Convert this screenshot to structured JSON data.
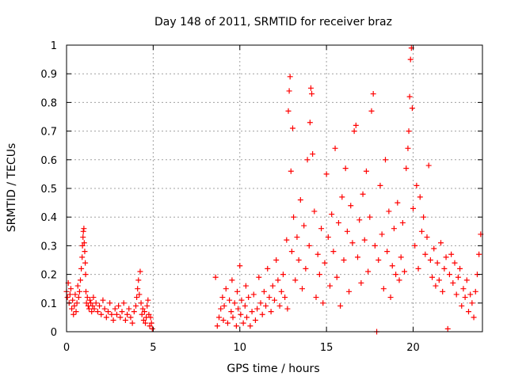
{
  "chart_data": {
    "type": "scatter",
    "title": "Day 148 of 2011, SRMTID for receiver braz",
    "xlabel": "GPS time / hours",
    "ylabel": "SRMTID / TECUs",
    "xlim": [
      0,
      24
    ],
    "ylim": [
      0,
      1
    ],
    "x_ticks": [
      0,
      5,
      10,
      15,
      20
    ],
    "x_tick_labels": [
      "0",
      "5",
      "10",
      "15",
      "20"
    ],
    "y_ticks": [
      0,
      0.1,
      0.2,
      0.3,
      0.4,
      0.5,
      0.6,
      0.7,
      0.8,
      0.9,
      1
    ],
    "y_tick_labels": [
      "0",
      "0.1",
      "0.2",
      "0.3",
      "0.4",
      "0.5",
      "0.6",
      "0.7",
      "0.8",
      "0.9",
      "1"
    ],
    "grid": true,
    "marker": "+",
    "series": [
      {
        "name": "SRMTID",
        "color": "#ff0000",
        "points": [
          [
            0.0,
            0.14
          ],
          [
            0.05,
            0.12
          ],
          [
            0.1,
            0.17
          ],
          [
            0.15,
            0.1
          ],
          [
            0.2,
            0.13
          ],
          [
            0.25,
            0.15
          ],
          [
            0.3,
            0.08
          ],
          [
            0.35,
            0.11
          ],
          [
            0.4,
            0.06
          ],
          [
            0.45,
            0.09
          ],
          [
            0.5,
            0.13
          ],
          [
            0.55,
            0.07
          ],
          [
            0.6,
            0.1
          ],
          [
            0.65,
            0.16
          ],
          [
            0.7,
            0.12
          ],
          [
            0.75,
            0.14
          ],
          [
            0.8,
            0.18
          ],
          [
            0.85,
            0.22
          ],
          [
            0.9,
            0.26
          ],
          [
            0.92,
            0.3
          ],
          [
            0.95,
            0.33
          ],
          [
            0.97,
            0.35
          ],
          [
            1.0,
            0.36
          ],
          [
            1.02,
            0.31
          ],
          [
            1.05,
            0.28
          ],
          [
            1.08,
            0.24
          ],
          [
            1.1,
            0.2
          ],
          [
            1.12,
            0.14
          ],
          [
            1.15,
            0.1
          ],
          [
            1.2,
            0.12
          ],
          [
            1.25,
            0.09
          ],
          [
            1.3,
            0.08
          ],
          [
            1.35,
            0.11
          ],
          [
            1.4,
            0.1
          ],
          [
            1.45,
            0.07
          ],
          [
            1.5,
            0.09
          ],
          [
            1.55,
            0.12
          ],
          [
            1.6,
            0.08
          ],
          [
            1.7,
            0.1
          ],
          [
            1.8,
            0.07
          ],
          [
            1.9,
            0.09
          ],
          [
            2.0,
            0.06
          ],
          [
            2.1,
            0.11
          ],
          [
            2.2,
            0.08
          ],
          [
            2.3,
            0.05
          ],
          [
            2.4,
            0.07
          ],
          [
            2.5,
            0.1
          ],
          [
            2.6,
            0.06
          ],
          [
            2.7,
            0.04
          ],
          [
            2.8,
            0.08
          ],
          [
            2.9,
            0.06
          ],
          [
            3.0,
            0.09
          ],
          [
            3.1,
            0.05
          ],
          [
            3.2,
            0.07
          ],
          [
            3.3,
            0.1
          ],
          [
            3.4,
            0.04
          ],
          [
            3.5,
            0.06
          ],
          [
            3.6,
            0.08
          ],
          [
            3.7,
            0.05
          ],
          [
            3.8,
            0.03
          ],
          [
            3.9,
            0.07
          ],
          [
            4.0,
            0.09
          ],
          [
            4.05,
            0.12
          ],
          [
            4.1,
            0.15
          ],
          [
            4.15,
            0.18
          ],
          [
            4.2,
            0.13
          ],
          [
            4.25,
            0.21
          ],
          [
            4.3,
            0.1
          ],
          [
            4.35,
            0.06
          ],
          [
            4.4,
            0.08
          ],
          [
            4.45,
            0.04
          ],
          [
            4.5,
            0.07
          ],
          [
            4.55,
            0.03
          ],
          [
            4.6,
            0.05
          ],
          [
            4.65,
            0.09
          ],
          [
            4.7,
            0.11
          ],
          [
            4.75,
            0.06
          ],
          [
            4.8,
            0.02
          ],
          [
            4.85,
            0.05
          ],
          [
            4.9,
            0.03
          ],
          [
            4.95,
            0.01
          ],
          [
            8.6,
            0.19
          ],
          [
            8.7,
            0.02
          ],
          [
            8.8,
            0.05
          ],
          [
            8.9,
            0.08
          ],
          [
            9.0,
            0.12
          ],
          [
            9.05,
            0.04
          ],
          [
            9.1,
            0.09
          ],
          [
            9.2,
            0.15
          ],
          [
            9.3,
            0.03
          ],
          [
            9.4,
            0.11
          ],
          [
            9.5,
            0.07
          ],
          [
            9.55,
            0.18
          ],
          [
            9.6,
            0.05
          ],
          [
            9.7,
            0.1
          ],
          [
            9.8,
            0.02
          ],
          [
            9.85,
            0.14
          ],
          [
            9.9,
            0.08
          ],
          [
            10.0,
            0.23
          ],
          [
            10.05,
            0.06
          ],
          [
            10.1,
            0.11
          ],
          [
            10.2,
            0.03
          ],
          [
            10.3,
            0.09
          ],
          [
            10.35,
            0.16
          ],
          [
            10.4,
            0.05
          ],
          [
            10.5,
            0.12
          ],
          [
            10.6,
            0.02
          ],
          [
            10.7,
            0.07
          ],
          [
            10.8,
            0.13
          ],
          [
            10.9,
            0.04
          ],
          [
            11.0,
            0.08
          ],
          [
            11.1,
            0.19
          ],
          [
            11.2,
            0.1
          ],
          [
            11.3,
            0.06
          ],
          [
            11.4,
            0.14
          ],
          [
            11.5,
            0.09
          ],
          [
            11.6,
            0.22
          ],
          [
            11.7,
            0.12
          ],
          [
            11.8,
            0.07
          ],
          [
            11.9,
            0.16
          ],
          [
            12.0,
            0.11
          ],
          [
            12.1,
            0.25
          ],
          [
            12.2,
            0.18
          ],
          [
            12.3,
            0.09
          ],
          [
            12.4,
            0.14
          ],
          [
            12.5,
            0.2
          ],
          [
            12.6,
            0.12
          ],
          [
            12.7,
            0.32
          ],
          [
            12.75,
            0.08
          ],
          [
            12.8,
            0.77
          ],
          [
            12.85,
            0.84
          ],
          [
            12.9,
            0.89
          ],
          [
            12.95,
            0.56
          ],
          [
            13.0,
            0.28
          ],
          [
            13.05,
            0.71
          ],
          [
            13.1,
            0.4
          ],
          [
            13.2,
            0.18
          ],
          [
            13.3,
            0.33
          ],
          [
            13.4,
            0.25
          ],
          [
            13.5,
            0.46
          ],
          [
            13.6,
            0.15
          ],
          [
            13.7,
            0.37
          ],
          [
            13.8,
            0.22
          ],
          [
            13.9,
            0.6
          ],
          [
            14.0,
            0.3
          ],
          [
            14.05,
            0.73
          ],
          [
            14.1,
            0.85
          ],
          [
            14.15,
            0.83
          ],
          [
            14.2,
            0.62
          ],
          [
            14.3,
            0.42
          ],
          [
            14.4,
            0.12
          ],
          [
            14.5,
            0.27
          ],
          [
            14.6,
            0.2
          ],
          [
            14.7,
            0.36
          ],
          [
            14.8,
            0.1
          ],
          [
            14.9,
            0.24
          ],
          [
            15.0,
            0.55
          ],
          [
            15.1,
            0.33
          ],
          [
            15.2,
            0.16
          ],
          [
            15.3,
            0.41
          ],
          [
            15.4,
            0.28
          ],
          [
            15.5,
            0.64
          ],
          [
            15.6,
            0.19
          ],
          [
            15.7,
            0.38
          ],
          [
            15.8,
            0.09
          ],
          [
            15.9,
            0.47
          ],
          [
            16.0,
            0.25
          ],
          [
            16.1,
            0.57
          ],
          [
            16.2,
            0.35
          ],
          [
            16.3,
            0.14
          ],
          [
            16.4,
            0.44
          ],
          [
            16.5,
            0.31
          ],
          [
            16.6,
            0.7
          ],
          [
            16.7,
            0.72
          ],
          [
            16.8,
            0.26
          ],
          [
            16.9,
            0.39
          ],
          [
            17.0,
            0.17
          ],
          [
            17.1,
            0.48
          ],
          [
            17.2,
            0.32
          ],
          [
            17.3,
            0.56
          ],
          [
            17.4,
            0.21
          ],
          [
            17.5,
            0.4
          ],
          [
            17.6,
            0.77
          ],
          [
            17.7,
            0.83
          ],
          [
            17.8,
            0.3
          ],
          [
            17.9,
            0.0
          ],
          [
            18.0,
            0.25
          ],
          [
            18.1,
            0.51
          ],
          [
            18.2,
            0.34
          ],
          [
            18.3,
            0.15
          ],
          [
            18.4,
            0.6
          ],
          [
            18.5,
            0.28
          ],
          [
            18.6,
            0.42
          ],
          [
            18.7,
            0.12
          ],
          [
            18.8,
            0.23
          ],
          [
            18.9,
            0.36
          ],
          [
            19.0,
            0.2
          ],
          [
            19.1,
            0.45
          ],
          [
            19.2,
            0.18
          ],
          [
            19.3,
            0.26
          ],
          [
            19.4,
            0.38
          ],
          [
            19.5,
            0.21
          ],
          [
            19.6,
            0.57
          ],
          [
            19.7,
            0.64
          ],
          [
            19.75,
            0.7
          ],
          [
            19.8,
            0.82
          ],
          [
            19.85,
            0.95
          ],
          [
            19.9,
            0.99
          ],
          [
            19.95,
            0.78
          ],
          [
            20.0,
            0.43
          ],
          [
            20.1,
            0.3
          ],
          [
            20.2,
            0.51
          ],
          [
            20.3,
            0.22
          ],
          [
            20.4,
            0.47
          ],
          [
            20.5,
            0.35
          ],
          [
            20.6,
            0.4
          ],
          [
            20.7,
            0.27
          ],
          [
            20.8,
            0.33
          ],
          [
            20.9,
            0.58
          ],
          [
            21.0,
            0.25
          ],
          [
            21.1,
            0.19
          ],
          [
            21.2,
            0.29
          ],
          [
            21.3,
            0.16
          ],
          [
            21.4,
            0.24
          ],
          [
            21.5,
            0.18
          ],
          [
            21.6,
            0.31
          ],
          [
            21.7,
            0.14
          ],
          [
            21.8,
            0.22
          ],
          [
            21.9,
            0.26
          ],
          [
            22.0,
            0.01
          ],
          [
            22.1,
            0.2
          ],
          [
            22.2,
            0.27
          ],
          [
            22.3,
            0.17
          ],
          [
            22.4,
            0.24
          ],
          [
            22.5,
            0.13
          ],
          [
            22.6,
            0.19
          ],
          [
            22.7,
            0.22
          ],
          [
            22.8,
            0.09
          ],
          [
            22.9,
            0.15
          ],
          [
            23.0,
            0.12
          ],
          [
            23.1,
            0.18
          ],
          [
            23.2,
            0.07
          ],
          [
            23.3,
            0.13
          ],
          [
            23.4,
            0.1
          ],
          [
            23.5,
            0.05
          ],
          [
            23.6,
            0.14
          ],
          [
            23.7,
            0.2
          ],
          [
            23.8,
            0.27
          ],
          [
            23.9,
            0.34
          ]
        ]
      }
    ]
  }
}
